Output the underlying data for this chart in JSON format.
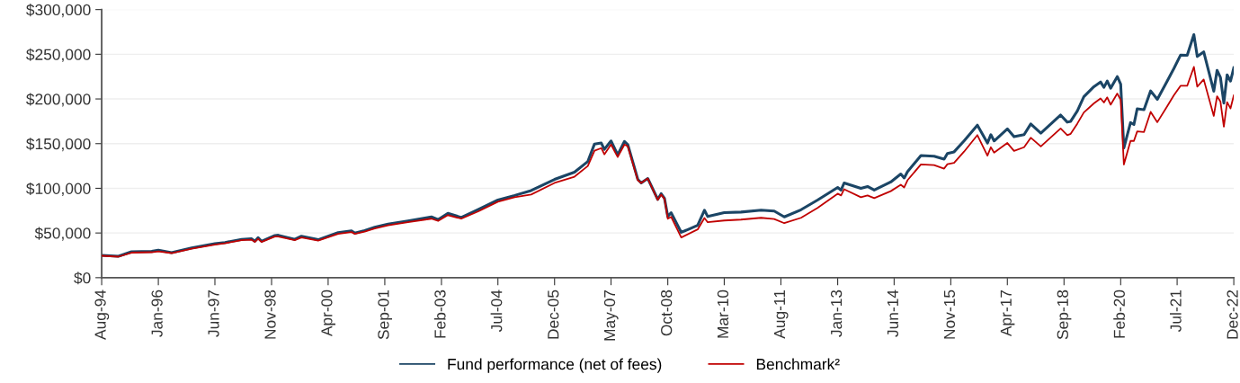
{
  "chart_data": {
    "type": "line",
    "x": [
      "1994-08",
      "1995-01",
      "1995-05",
      "1995-11",
      "1996-01",
      "1996-05",
      "1996-11",
      "1997-06",
      "1997-09",
      "1998-02",
      "1998-05",
      "1998-06",
      "1998-07",
      "1998-08",
      "1998-12",
      "1999-01",
      "1999-06",
      "1999-08",
      "2000-01",
      "2000-07",
      "2000-11",
      "2000-12",
      "2001-03",
      "2001-06",
      "2001-10",
      "2002-04",
      "2002-11",
      "2003-01",
      "2003-04",
      "2003-08",
      "2004-01",
      "2004-07",
      "2004-12",
      "2005-05",
      "2005-12",
      "2006-06",
      "2006-10",
      "2006-12",
      "2007-02",
      "2007-03",
      "2007-05",
      "2007-07",
      "2007-09",
      "2007-10",
      "2008-01",
      "2008-02",
      "2008-04",
      "2008-07",
      "2008-08",
      "2008-09",
      "2008-10",
      "2008-11",
      "2009-02",
      "2009-07",
      "2009-09",
      "2009-10",
      "2010-03",
      "2010-08",
      "2011-02",
      "2011-06",
      "2011-09",
      "2012-02",
      "2012-07",
      "2013-01",
      "2013-02",
      "2013-03",
      "2013-08",
      "2013-10",
      "2013-12",
      "2014-05",
      "2014-08",
      "2014-09",
      "2014-10",
      "2015-02",
      "2015-06",
      "2015-09",
      "2015-10",
      "2015-12",
      "2016-03",
      "2016-07",
      "2016-10",
      "2016-11",
      "2016-12",
      "2017-04",
      "2017-06",
      "2017-09",
      "2017-11",
      "2018-02",
      "2018-08",
      "2018-10",
      "2018-11",
      "2019-01",
      "2019-03",
      "2019-06",
      "2019-08",
      "2019-09",
      "2019-10",
      "2019-11",
      "2020-01",
      "2020-02",
      "2020-03",
      "2020-05",
      "2020-06",
      "2020-07",
      "2020-09",
      "2020-11",
      "2021-01",
      "2021-04",
      "2021-06",
      "2021-08",
      "2021-10",
      "2021-12",
      "2022-01",
      "2022-03",
      "2022-06",
      "2022-07",
      "2022-08",
      "2022-09",
      "2022-10",
      "2022-11",
      "2022-12"
    ],
    "series": [
      {
        "name": "Fund performance (net of fees)",
        "color": "#1b4565",
        "values": [
          25000,
          24000,
          29000,
          29400,
          30800,
          28000,
          33300,
          38000,
          39400,
          42900,
          43600,
          40800,
          44700,
          40800,
          47200,
          47500,
          42900,
          46400,
          42500,
          50400,
          52500,
          50000,
          52800,
          56400,
          60000,
          63500,
          68000,
          65000,
          72000,
          67400,
          76200,
          87000,
          92000,
          97500,
          110000,
          118000,
          130000,
          149600,
          150700,
          143600,
          153000,
          137600,
          152500,
          149000,
          110000,
          106000,
          111000,
          87600,
          94000,
          88700,
          68400,
          72700,
          50700,
          58500,
          75500,
          68400,
          72700,
          73400,
          75500,
          74500,
          68000,
          76000,
          86900,
          101000,
          98000,
          106000,
          100000,
          102000,
          98000,
          107000,
          116000,
          111600,
          118600,
          136600,
          136000,
          132700,
          139000,
          140800,
          153000,
          170700,
          150700,
          160000,
          153000,
          166500,
          157700,
          160000,
          172000,
          161600,
          182000,
          174000,
          175000,
          186600,
          202400,
          213700,
          219000,
          213000,
          220000,
          212000,
          225000,
          216500,
          145000,
          173500,
          171400,
          189000,
          188000,
          209000,
          199600,
          220000,
          234000,
          249000,
          248800,
          272000,
          247500,
          252700,
          208700,
          232000,
          224000,
          195400,
          227000,
          220000,
          234800
        ]
      },
      {
        "name": "Benchmark²",
        "color": "#c00000",
        "values": [
          24500,
          23500,
          28000,
          28500,
          29500,
          27500,
          32500,
          37000,
          38500,
          42000,
          42500,
          40000,
          43500,
          40000,
          46000,
          46000,
          42000,
          45000,
          41500,
          49000,
          51000,
          49000,
          51500,
          55000,
          58500,
          62000,
          66000,
          63500,
          70000,
          66000,
          74000,
          85000,
          90000,
          93000,
          106000,
          113000,
          125000,
          142000,
          145000,
          138000,
          149000,
          135000,
          149000,
          147000,
          109000,
          106000,
          111000,
          87000,
          93000,
          88000,
          66000,
          68000,
          45000,
          54000,
          66700,
          62000,
          64000,
          65000,
          67000,
          65600,
          61000,
          67000,
          78000,
          94000,
          92000,
          99000,
          90000,
          92000,
          89000,
          96800,
          104000,
          101000,
          109000,
          126700,
          126000,
          122000,
          127000,
          128500,
          141000,
          159500,
          136600,
          146000,
          140000,
          150700,
          141900,
          146000,
          156600,
          146800,
          167000,
          159500,
          161000,
          172500,
          184800,
          195000,
          200600,
          196000,
          201700,
          193600,
          206000,
          199000,
          126700,
          153000,
          153000,
          163700,
          163000,
          185500,
          174000,
          191800,
          204000,
          214700,
          214700,
          235800,
          213700,
          221800,
          181000,
          203000,
          197000,
          169000,
          196400,
          189400,
          204000
        ]
      }
    ],
    "ylim": [
      0,
      300000
    ],
    "yticks": [
      {
        "value": 0,
        "label": "$0"
      },
      {
        "value": 50000,
        "label": "$50,000"
      },
      {
        "value": 100000,
        "label": "$100,000"
      },
      {
        "value": 150000,
        "label": "$150,000"
      },
      {
        "value": 200000,
        "label": "$200,000"
      },
      {
        "value": 250000,
        "label": "$250,000"
      },
      {
        "value": 300000,
        "label": "$300,000"
      }
    ],
    "xlim": [
      "1994-08",
      "2022-12"
    ],
    "xticks": [
      {
        "value": "1994-08",
        "label": "Aug-94"
      },
      {
        "value": "1996-01",
        "label": "Jan-96"
      },
      {
        "value": "1997-06",
        "label": "Jun-97"
      },
      {
        "value": "1998-11",
        "label": "Nov-98"
      },
      {
        "value": "2000-04",
        "label": "Apr-00"
      },
      {
        "value": "2001-09",
        "label": "Sep-01"
      },
      {
        "value": "2003-02",
        "label": "Feb-03"
      },
      {
        "value": "2004-07",
        "label": "Jul-04"
      },
      {
        "value": "2005-12",
        "label": "Dec-05"
      },
      {
        "value": "2007-05",
        "label": "May-07"
      },
      {
        "value": "2008-10",
        "label": "Oct-08"
      },
      {
        "value": "2010-03",
        "label": "Mar-10"
      },
      {
        "value": "2011-08",
        "label": "Aug-11"
      },
      {
        "value": "2013-01",
        "label": "Jan-13"
      },
      {
        "value": "2014-06",
        "label": "Jun-14"
      },
      {
        "value": "2015-11",
        "label": "Nov-15"
      },
      {
        "value": "2017-04",
        "label": "Apr-17"
      },
      {
        "value": "2018-09",
        "label": "Sep-18"
      },
      {
        "value": "2020-02",
        "label": "Feb-20"
      },
      {
        "value": "2021-07",
        "label": "Jul-21"
      },
      {
        "value": "2022-12",
        "label": "Dec-22"
      }
    ],
    "grid": "y",
    "legend": "bottom",
    "marker": "none",
    "line_style": "solid"
  }
}
